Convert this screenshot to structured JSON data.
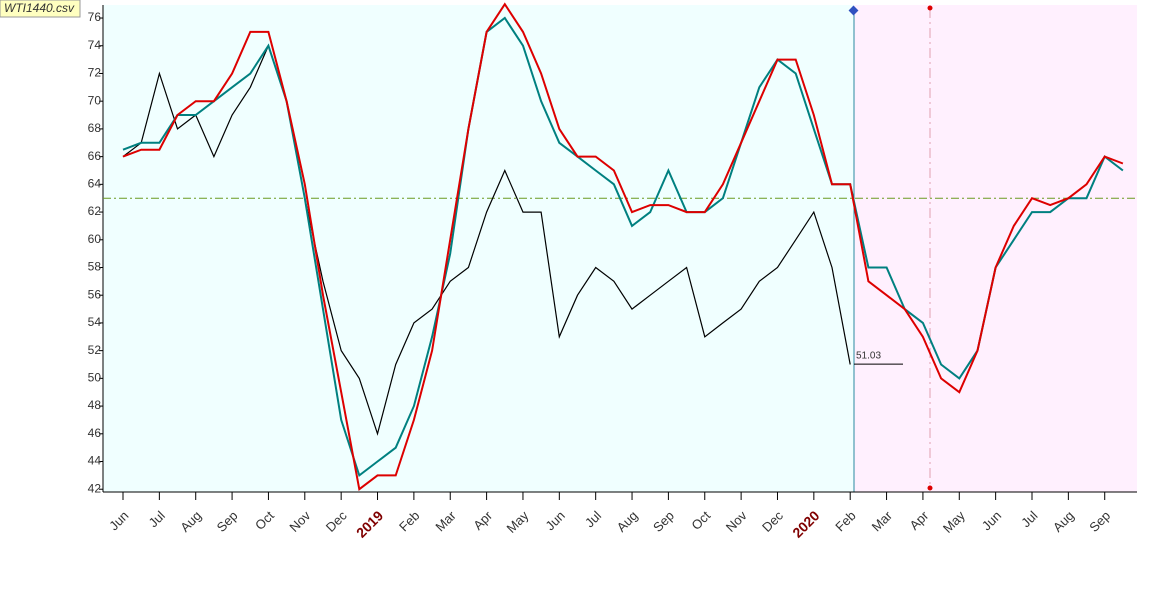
{
  "chart_data": {
    "type": "line",
    "title": "WTI1440.csv",
    "categories": [
      "Jun",
      null,
      "Jul",
      null,
      "Aug",
      null,
      "Sep",
      null,
      "Oct",
      null,
      "Nov",
      null,
      "Dec",
      null,
      "2019",
      null,
      "Feb",
      null,
      "Mar",
      null,
      "Apr",
      null,
      "May",
      null,
      "Jun",
      null,
      "Jul",
      null,
      "Aug",
      null,
      "Sep",
      null,
      "Oct",
      null,
      "Nov",
      null,
      "Dec",
      null,
      "2020",
      null,
      "Feb",
      null,
      "Mar",
      null,
      "Apr",
      null,
      "May",
      null,
      "Jun",
      null,
      "Jul",
      null,
      "Aug",
      null,
      "Sep",
      null
    ],
    "series": [
      {
        "color": "#000000",
        "values": [
          66,
          67,
          72,
          68,
          69,
          66,
          69,
          71,
          74,
          70,
          63,
          57,
          52,
          50,
          46,
          51,
          54,
          55,
          57,
          58,
          62,
          65,
          62,
          62,
          53,
          56,
          58,
          57,
          55,
          56,
          57,
          58,
          53,
          54,
          55,
          57,
          58,
          60,
          62,
          58,
          51,
          null,
          null,
          null,
          null,
          null,
          null,
          null,
          null,
          null,
          null,
          null,
          null,
          null,
          null,
          null
        ]
      },
      {
        "color": "#008080",
        "values": [
          66.5,
          67,
          67,
          69,
          69,
          70,
          71,
          72,
          74,
          70,
          63,
          55,
          47,
          43,
          44,
          45,
          48,
          53,
          59,
          68,
          75,
          76,
          74,
          70,
          67,
          66,
          65,
          64,
          61,
          62,
          65,
          62,
          62,
          63,
          67,
          71,
          73,
          72,
          68,
          64,
          64,
          58,
          58,
          55,
          54,
          51,
          50,
          52,
          58,
          60,
          62,
          62,
          63,
          63,
          66,
          65
        ]
      },
      {
        "color": "#dd0000",
        "values": [
          66,
          66.5,
          66.5,
          69,
          70,
          70,
          72,
          75,
          75,
          70,
          64,
          56,
          49,
          42,
          43,
          43,
          47,
          52,
          60,
          68,
          75,
          77,
          75,
          72,
          68,
          66,
          66,
          65,
          62,
          62.5,
          62.5,
          62,
          62,
          64,
          67,
          70,
          73,
          73,
          69,
          64,
          64,
          57,
          56,
          55,
          53,
          50,
          49,
          52,
          58,
          61,
          63,
          62.5,
          63,
          64,
          66,
          65.5
        ]
      }
    ],
    "reference_line": 63,
    "last_value": 51.03,
    "ylim": [
      41.8,
      76.94
    ],
    "yticks": [
      42,
      44,
      46,
      48,
      50,
      52,
      54,
      56,
      58,
      60,
      62,
      64,
      66,
      68,
      70,
      72,
      74,
      76
    ]
  }
}
